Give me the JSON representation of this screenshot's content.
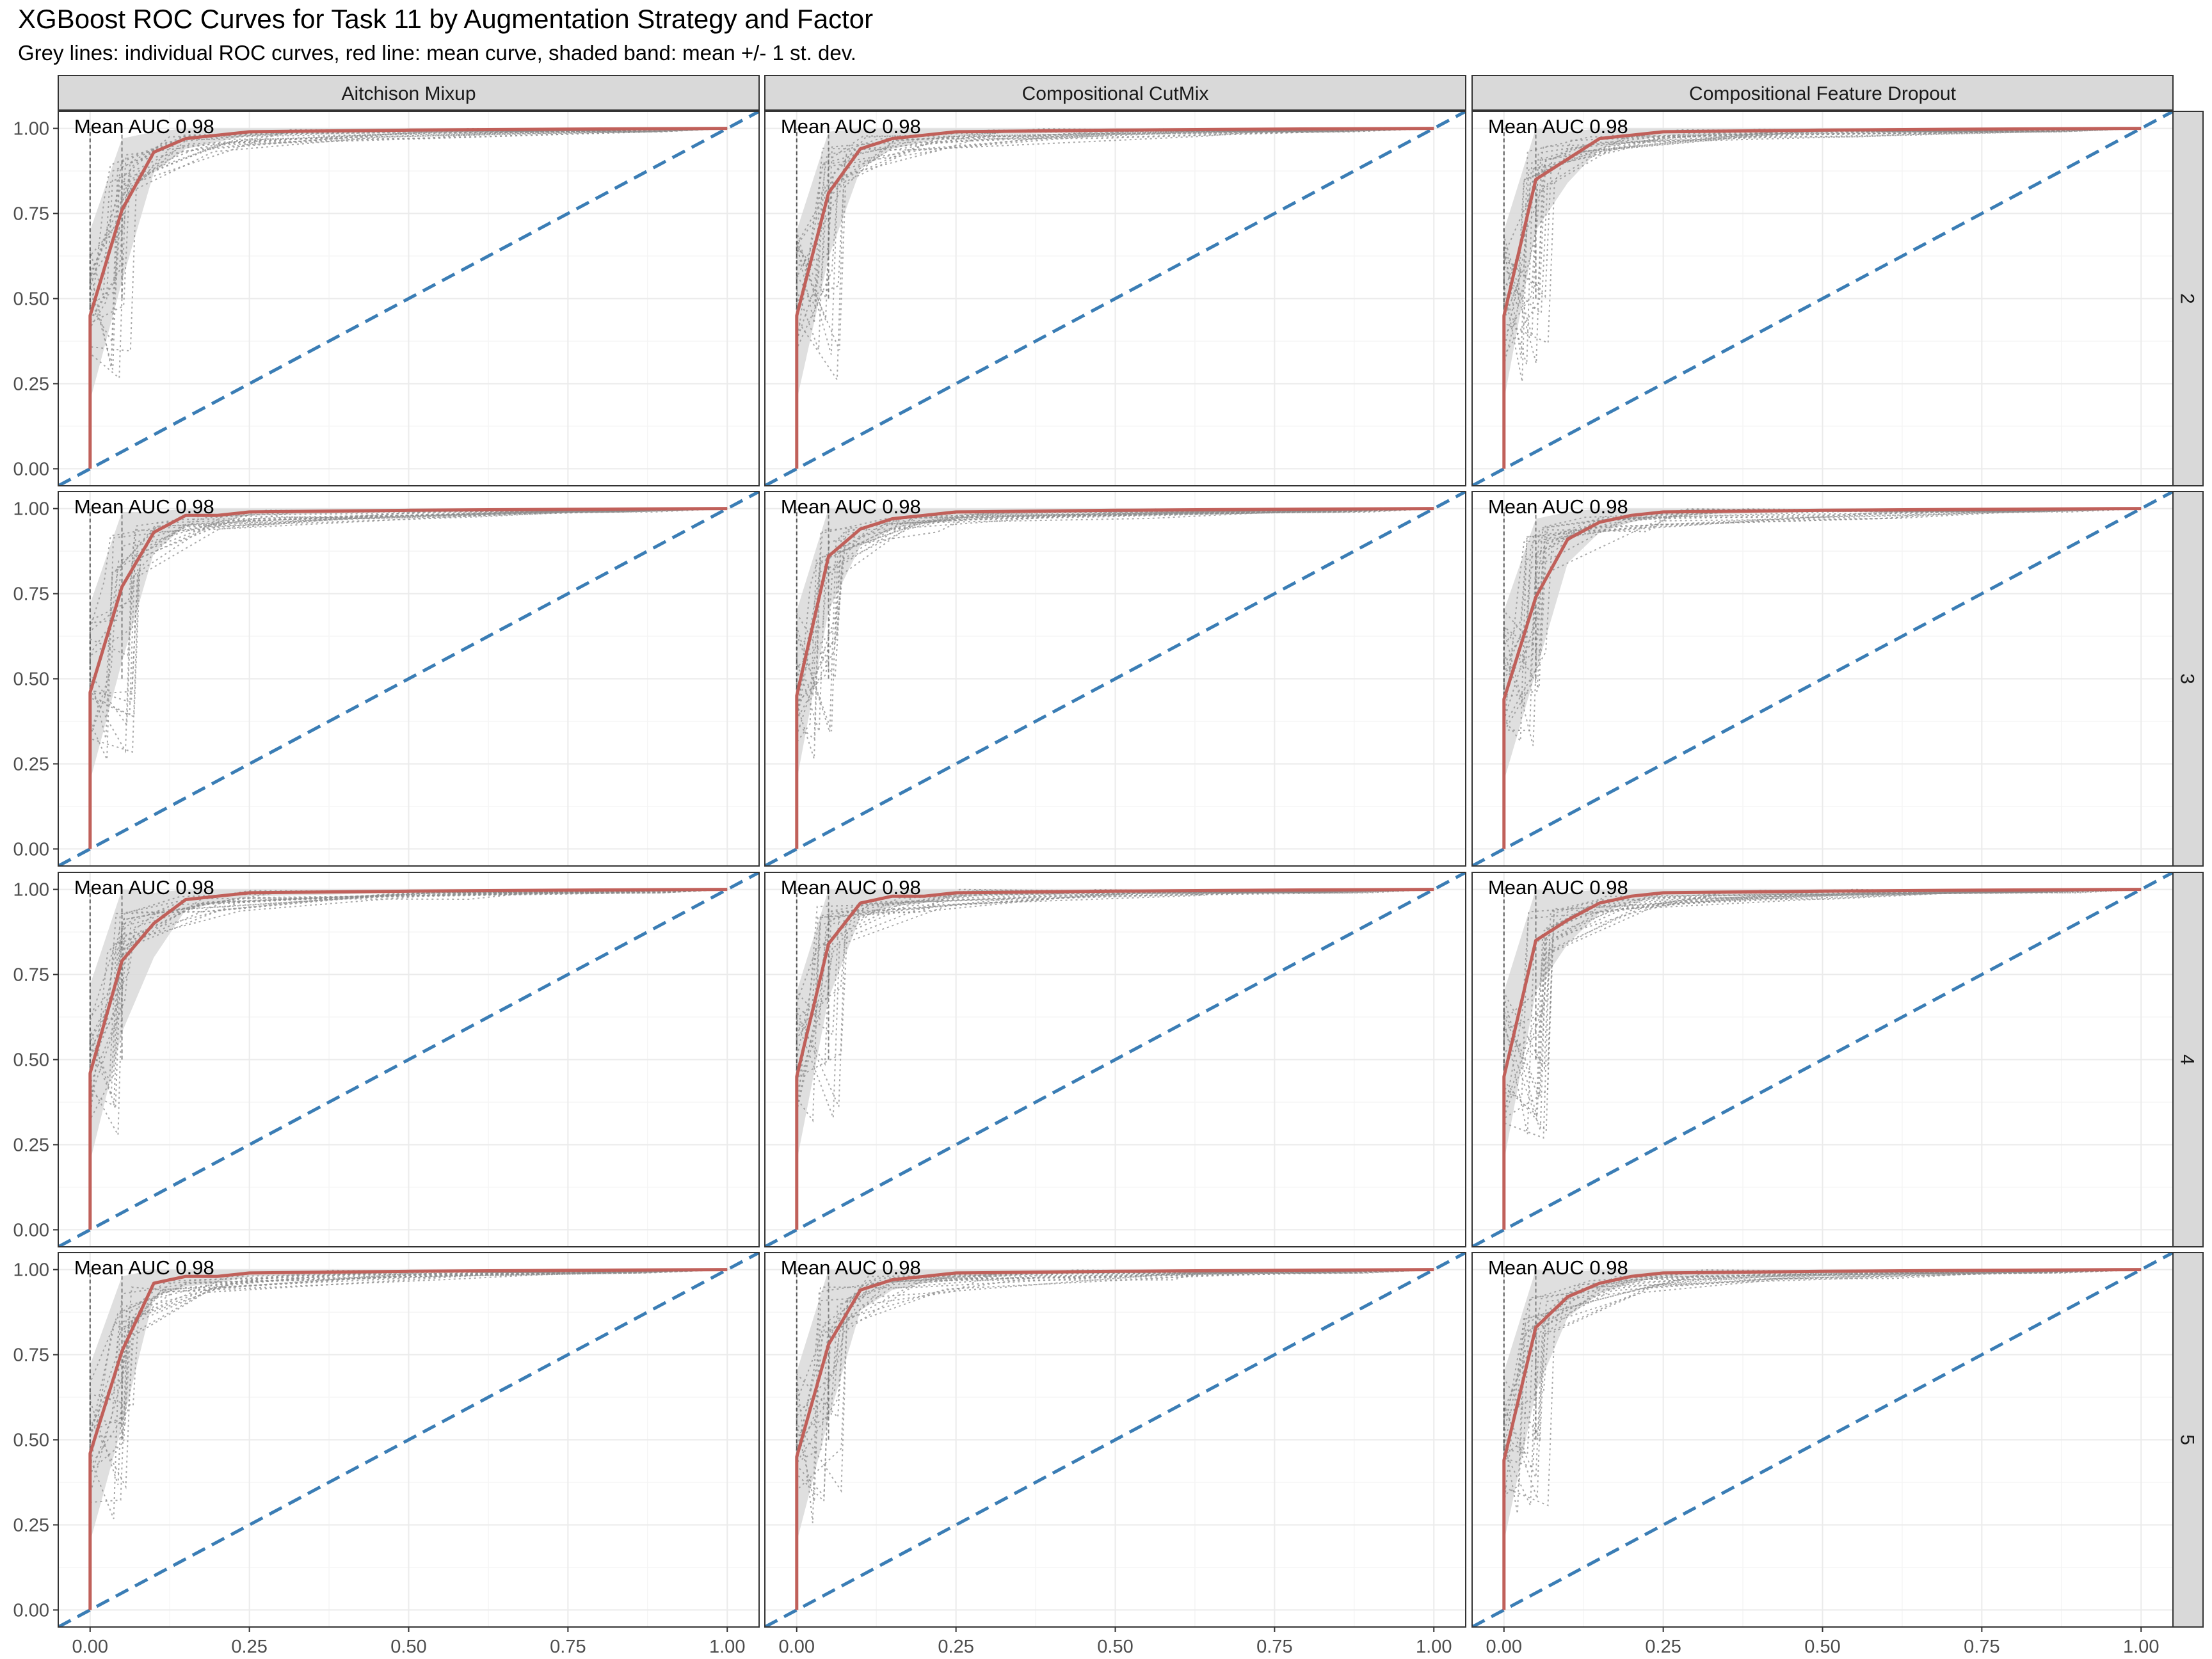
{
  "chart": {
    "title": "XGBoost ROC Curves for Task 11 by Augmentation Strategy and Factor",
    "subtitle": "Grey lines: individual ROC curves, red line: mean curve, shaded band: mean +/- 1 st. dev."
  },
  "colors": {
    "mean_curve": "#C0605A",
    "band": "#D9D9D9",
    "individual": "#8C8C8C",
    "diagonal": "#3A7DB5",
    "strip_fill": "#D9D9D9",
    "grid_major": "#EBEBEB",
    "grid_minor": "#F5F5F5"
  },
  "chart_data": {
    "type": "line",
    "facet_columns": [
      "Aitchison Mixup",
      "Compositional CutMix",
      "Compositional Feature Dropout"
    ],
    "facet_rows": [
      "2",
      "3",
      "4",
      "5"
    ],
    "x_ticks": [
      "0.00",
      "0.25",
      "0.50",
      "0.75",
      "1.00"
    ],
    "y_ticks": [
      "0.00",
      "0.25",
      "0.50",
      "0.75",
      "1.00"
    ],
    "xlim": [
      0,
      1
    ],
    "ylim": [
      0,
      1
    ],
    "grid": true,
    "panels": [
      {
        "row": "2",
        "col": "Aitchison Mixup",
        "annotation": "Mean AUC 0.98",
        "mean_curve": {
          "x": [
            0,
            0,
            0.05,
            0.1,
            0.15,
            0.2,
            0.25,
            0.5,
            0.75,
            1.0
          ],
          "y": [
            0,
            0.45,
            0.76,
            0.93,
            0.97,
            0.98,
            0.99,
            0.995,
            0.998,
            1.0
          ]
        },
        "band_lower": [
          0,
          0.2,
          0.55,
          0.87,
          0.94,
          0.96,
          0.98,
          0.99,
          0.995,
          1.0
        ],
        "band_upper": [
          0,
          0.7,
          0.97,
          0.99,
          1.0,
          1.0,
          1.0,
          1.0,
          1.0,
          1.0
        ]
      },
      {
        "row": "2",
        "col": "Compositional CutMix",
        "annotation": "Mean AUC 0.98",
        "mean_curve": {
          "x": [
            0,
            0,
            0.05,
            0.1,
            0.15,
            0.2,
            0.25,
            0.5,
            0.75,
            1.0
          ],
          "y": [
            0,
            0.45,
            0.81,
            0.94,
            0.97,
            0.98,
            0.99,
            0.995,
            0.998,
            1.0
          ]
        },
        "band_lower": [
          0,
          0.2,
          0.62,
          0.88,
          0.94,
          0.96,
          0.98,
          0.99,
          0.995,
          1.0
        ],
        "band_upper": [
          0,
          0.7,
          0.99,
          1.0,
          1.0,
          1.0,
          1.0,
          1.0,
          1.0,
          1.0
        ]
      },
      {
        "row": "2",
        "col": "Compositional Feature Dropout",
        "annotation": "Mean AUC 0.98",
        "mean_curve": {
          "x": [
            0,
            0,
            0.05,
            0.1,
            0.15,
            0.2,
            0.25,
            0.5,
            0.75,
            1.0
          ],
          "y": [
            0,
            0.45,
            0.85,
            0.91,
            0.97,
            0.98,
            0.99,
            0.995,
            0.998,
            1.0
          ]
        },
        "band_lower": [
          0,
          0.2,
          0.7,
          0.84,
          0.94,
          0.96,
          0.98,
          0.99,
          0.995,
          1.0
        ],
        "band_upper": [
          0,
          0.7,
          1.0,
          0.99,
          1.0,
          1.0,
          1.0,
          1.0,
          1.0,
          1.0
        ]
      },
      {
        "row": "3",
        "col": "Aitchison Mixup",
        "annotation": "Mean AUC 0.98",
        "mean_curve": {
          "x": [
            0,
            0,
            0.05,
            0.1,
            0.15,
            0.2,
            0.25,
            0.5,
            0.75,
            1.0
          ],
          "y": [
            0,
            0.46,
            0.77,
            0.93,
            0.98,
            0.98,
            0.99,
            0.995,
            0.998,
            1.0
          ]
        },
        "band_lower": [
          0,
          0.2,
          0.55,
          0.87,
          0.95,
          0.96,
          0.98,
          0.99,
          0.995,
          1.0
        ],
        "band_upper": [
          0,
          0.72,
          0.99,
          0.99,
          1.0,
          1.0,
          1.0,
          1.0,
          1.0,
          1.0
        ]
      },
      {
        "row": "3",
        "col": "Compositional CutMix",
        "annotation": "Mean AUC 0.98",
        "mean_curve": {
          "x": [
            0,
            0,
            0.05,
            0.1,
            0.15,
            0.2,
            0.25,
            0.5,
            0.75,
            1.0
          ],
          "y": [
            0,
            0.45,
            0.86,
            0.94,
            0.97,
            0.98,
            0.99,
            0.995,
            0.998,
            1.0
          ]
        },
        "band_lower": [
          0,
          0.2,
          0.7,
          0.89,
          0.94,
          0.96,
          0.98,
          0.99,
          0.995,
          1.0
        ],
        "band_upper": [
          0,
          0.7,
          1.0,
          1.0,
          1.0,
          1.0,
          1.0,
          1.0,
          1.0,
          1.0
        ]
      },
      {
        "row": "3",
        "col": "Compositional Feature Dropout",
        "annotation": "Mean AUC 0.98",
        "mean_curve": {
          "x": [
            0,
            0,
            0.05,
            0.1,
            0.15,
            0.2,
            0.25,
            0.5,
            0.75,
            1.0
          ],
          "y": [
            0,
            0.44,
            0.74,
            0.91,
            0.96,
            0.98,
            0.99,
            0.995,
            0.998,
            1.0
          ]
        },
        "band_lower": [
          0,
          0.2,
          0.52,
          0.84,
          0.93,
          0.96,
          0.98,
          0.99,
          0.995,
          1.0
        ],
        "band_upper": [
          0,
          0.7,
          0.97,
          0.99,
          1.0,
          1.0,
          1.0,
          1.0,
          1.0,
          1.0
        ]
      },
      {
        "row": "4",
        "col": "Aitchison Mixup",
        "annotation": "Mean AUC 0.98",
        "mean_curve": {
          "x": [
            0,
            0,
            0.05,
            0.1,
            0.15,
            0.2,
            0.25,
            0.5,
            0.75,
            1.0
          ],
          "y": [
            0,
            0.46,
            0.79,
            0.9,
            0.97,
            0.98,
            0.99,
            0.995,
            0.998,
            1.0
          ]
        },
        "band_lower": [
          0,
          0.2,
          0.58,
          0.8,
          0.94,
          0.96,
          0.98,
          0.99,
          0.995,
          1.0
        ],
        "band_upper": [
          0,
          0.72,
          1.0,
          0.99,
          1.0,
          1.0,
          1.0,
          1.0,
          1.0,
          1.0
        ]
      },
      {
        "row": "4",
        "col": "Compositional CutMix",
        "annotation": "Mean AUC 0.98",
        "mean_curve": {
          "x": [
            0,
            0,
            0.05,
            0.1,
            0.15,
            0.2,
            0.25,
            0.5,
            0.75,
            1.0
          ],
          "y": [
            0,
            0.45,
            0.84,
            0.96,
            0.98,
            0.98,
            0.99,
            0.995,
            0.998,
            1.0
          ]
        },
        "band_lower": [
          0,
          0.2,
          0.68,
          0.92,
          0.95,
          0.96,
          0.98,
          0.99,
          0.995,
          1.0
        ],
        "band_upper": [
          0,
          0.7,
          1.0,
          1.0,
          1.0,
          1.0,
          1.0,
          1.0,
          1.0,
          1.0
        ]
      },
      {
        "row": "4",
        "col": "Compositional Feature Dropout",
        "annotation": "Mean AUC 0.98",
        "mean_curve": {
          "x": [
            0,
            0,
            0.05,
            0.1,
            0.15,
            0.2,
            0.25,
            0.5,
            0.75,
            1.0
          ],
          "y": [
            0,
            0.45,
            0.85,
            0.91,
            0.96,
            0.98,
            0.99,
            0.995,
            0.998,
            1.0
          ]
        },
        "band_lower": [
          0,
          0.2,
          0.7,
          0.84,
          0.93,
          0.96,
          0.98,
          0.99,
          0.995,
          1.0
        ],
        "band_upper": [
          0,
          0.7,
          1.0,
          0.99,
          1.0,
          1.0,
          1.0,
          1.0,
          1.0,
          1.0
        ]
      },
      {
        "row": "5",
        "col": "Aitchison Mixup",
        "annotation": "Mean AUC 0.98",
        "mean_curve": {
          "x": [
            0,
            0,
            0.05,
            0.1,
            0.15,
            0.2,
            0.25,
            0.5,
            0.75,
            1.0
          ],
          "y": [
            0,
            0.46,
            0.76,
            0.96,
            0.98,
            0.98,
            0.99,
            0.995,
            0.998,
            1.0
          ]
        },
        "band_lower": [
          0,
          0.2,
          0.54,
          0.92,
          0.95,
          0.96,
          0.98,
          0.99,
          0.995,
          1.0
        ],
        "band_upper": [
          0,
          0.72,
          0.98,
          1.0,
          1.0,
          1.0,
          1.0,
          1.0,
          1.0,
          1.0
        ]
      },
      {
        "row": "5",
        "col": "Compositional CutMix",
        "annotation": "Mean AUC 0.98",
        "mean_curve": {
          "x": [
            0,
            0,
            0.05,
            0.1,
            0.15,
            0.2,
            0.25,
            0.5,
            0.75,
            1.0
          ],
          "y": [
            0,
            0.45,
            0.78,
            0.94,
            0.97,
            0.98,
            0.99,
            0.995,
            0.998,
            1.0
          ]
        },
        "band_lower": [
          0,
          0.2,
          0.56,
          0.88,
          0.94,
          0.96,
          0.98,
          0.99,
          0.995,
          1.0
        ],
        "band_upper": [
          0,
          0.7,
          1.0,
          1.0,
          1.0,
          1.0,
          1.0,
          1.0,
          1.0,
          1.0
        ]
      },
      {
        "row": "5",
        "col": "Compositional Feature Dropout",
        "annotation": "Mean AUC 0.98",
        "mean_curve": {
          "x": [
            0,
            0,
            0.05,
            0.1,
            0.15,
            0.2,
            0.25,
            0.5,
            0.75,
            1.0
          ],
          "y": [
            0,
            0.44,
            0.83,
            0.92,
            0.96,
            0.98,
            0.99,
            0.995,
            0.998,
            1.0
          ]
        },
        "band_lower": [
          0,
          0.2,
          0.64,
          0.86,
          0.93,
          0.96,
          0.98,
          0.99,
          0.995,
          1.0
        ],
        "band_upper": [
          0,
          0.7,
          1.0,
          0.99,
          1.0,
          1.0,
          1.0,
          1.0,
          1.0,
          1.0
        ]
      }
    ]
  }
}
